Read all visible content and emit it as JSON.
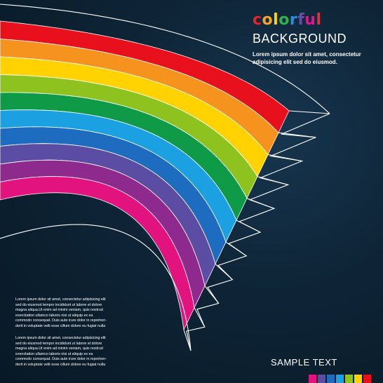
{
  "heading": {
    "title_word": "colorful",
    "title_letter_colors": [
      "#e8202a",
      "#f5a623",
      "#ffd400",
      "#2fb24c",
      "#2a8fe0",
      "#6b4ca8",
      "#e2168c",
      "#ee2d34"
    ],
    "subtitle": "BACKGROUND",
    "intro_line1": "Lorem ipsum dolor sit amet, consectetur",
    "intro_line2": "adipisicing elit sed do eiusmod."
  },
  "body_text": {
    "paragraph1": [
      "Lorem ipsum dolor sit amet, consectetur adipisicing elit",
      "sed do eiusmod tempor incididunt ut labore et dolore",
      "magna aliqua.Ut enim ad minim veniam, quis nostrud",
      "exercitation ullamco laboris nisi ut aliquip ex ea",
      "commodo consequat. Duis aute irure dolor in reprehen-",
      "derit in voluptate velit esse cillum dolore eu fugiat nulla"
    ],
    "paragraph2": [
      "Lorem ipsum dolor sit amet, consectetur adipisicing elit",
      "sed do eiusmod tempor incididunt ut labore et dolore",
      "magna aliqua.Ut enim ad minim veniam, quis nostrud",
      "exercitation ullamco laboris nisi ut aliquip ex ea",
      "commodo consequat. Duis aute irure dolor in reprehen-",
      "derit in voluptate velit esse cillum dolore eu fugiat nulla"
    ]
  },
  "footer": {
    "sample_text": "SAMPLE TEXT"
  },
  "stripe_colors": [
    "#e8101c",
    "#f5931e",
    "#ffd200",
    "#8dc21f",
    "#0e9a47",
    "#1ba1e2",
    "#1e6cc0",
    "#5a4da3",
    "#8e2a8e",
    "#e2137f"
  ],
  "swatch_colors": [
    "#e2137f",
    "#5a4da3",
    "#1e6cc0",
    "#1ba1e2",
    "#8dc21f",
    "#ffd200",
    "#e8101c"
  ],
  "background_color": "#0e2436"
}
